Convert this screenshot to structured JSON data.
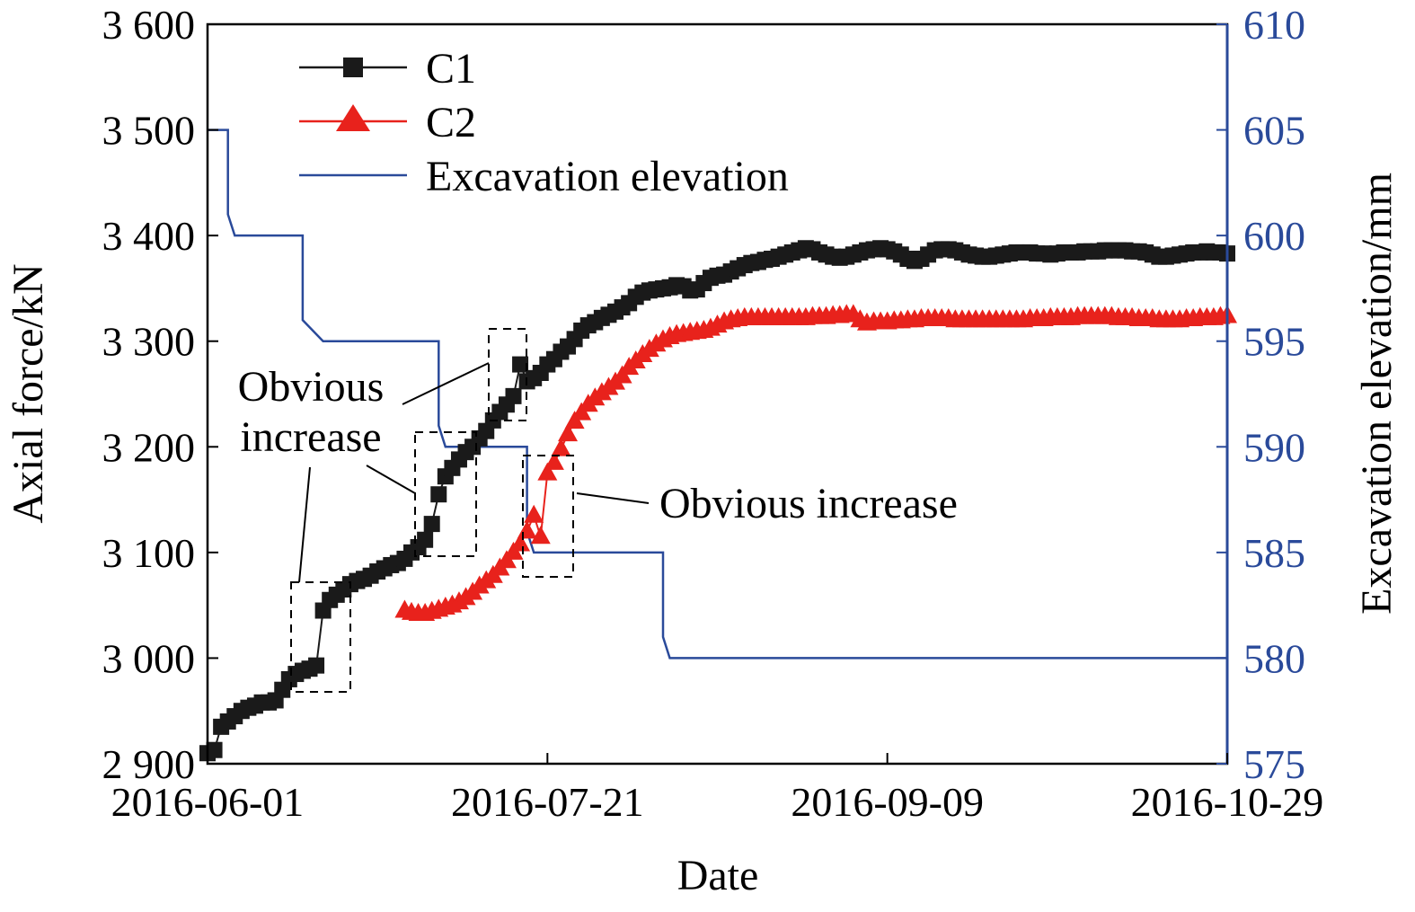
{
  "chart_data": {
    "type": "line",
    "xlabel": "Date",
    "ylabel_left": "Axial force/kN",
    "ylabel_right": "Excavation elevation/mm",
    "x_ticks": [
      "2016-06-01",
      "2016-07-21",
      "2016-09-09",
      "2016-10-29"
    ],
    "x_range": [
      "2016-06-01",
      "2016-10-29"
    ],
    "y_left_ticks": [
      "2 900",
      "3 000",
      "3 100",
      "3 200",
      "3 300",
      "3 400",
      "3 500",
      "3 600"
    ],
    "y_left_range": [
      2900,
      3600
    ],
    "y_right_ticks": [
      "575",
      "580",
      "585",
      "590",
      "595",
      "600",
      "605",
      "610"
    ],
    "y_right_range": [
      575,
      610
    ],
    "grid": false,
    "legend_position": "top-left",
    "colors": {
      "C1": "#1a1a1a",
      "C2": "#e8221c",
      "Excavation elevation": "#2a4a9a",
      "annotation": "#000000"
    },
    "series": [
      {
        "name": "C1",
        "axis": "left",
        "marker": "square",
        "x": [
          "2016-06-01",
          "2016-06-02",
          "2016-06-03",
          "2016-06-04",
          "2016-06-05",
          "2016-06-06",
          "2016-06-07",
          "2016-06-08",
          "2016-06-09",
          "2016-06-10",
          "2016-06-11",
          "2016-06-12",
          "2016-06-13",
          "2016-06-14",
          "2016-06-15",
          "2016-06-16",
          "2016-06-17",
          "2016-06-18",
          "2016-06-19",
          "2016-06-20",
          "2016-06-21",
          "2016-06-22",
          "2016-06-23",
          "2016-06-24",
          "2016-06-25",
          "2016-06-26",
          "2016-06-27",
          "2016-06-28",
          "2016-06-29",
          "2016-06-30",
          "2016-07-01",
          "2016-07-02",
          "2016-07-03",
          "2016-07-04",
          "2016-07-05",
          "2016-07-06",
          "2016-07-07",
          "2016-07-08",
          "2016-07-09",
          "2016-07-10",
          "2016-07-11",
          "2016-07-12",
          "2016-07-13",
          "2016-07-14",
          "2016-07-15",
          "2016-07-16",
          "2016-07-17",
          "2016-07-18",
          "2016-07-19",
          "2016-07-20",
          "2016-07-21",
          "2016-07-22",
          "2016-07-23",
          "2016-07-24",
          "2016-07-25",
          "2016-07-26",
          "2016-07-27",
          "2016-07-28",
          "2016-07-29",
          "2016-07-30",
          "2016-07-31",
          "2016-08-01",
          "2016-08-02",
          "2016-08-03",
          "2016-08-04",
          "2016-08-05",
          "2016-08-06",
          "2016-08-07",
          "2016-08-08",
          "2016-08-09",
          "2016-08-10",
          "2016-08-11",
          "2016-08-12",
          "2016-08-13",
          "2016-08-14",
          "2016-08-15",
          "2016-08-16",
          "2016-08-17",
          "2016-08-18",
          "2016-08-19",
          "2016-08-20",
          "2016-08-21",
          "2016-08-22",
          "2016-08-23",
          "2016-08-24",
          "2016-08-25",
          "2016-08-26",
          "2016-08-27",
          "2016-08-28",
          "2016-08-29",
          "2016-08-30",
          "2016-08-31",
          "2016-09-01",
          "2016-09-02",
          "2016-09-03",
          "2016-09-04",
          "2016-09-05",
          "2016-09-06",
          "2016-09-07",
          "2016-09-08",
          "2016-09-09",
          "2016-09-10",
          "2016-09-11",
          "2016-09-12",
          "2016-09-13",
          "2016-09-14",
          "2016-09-15",
          "2016-09-16",
          "2016-09-17",
          "2016-09-18",
          "2016-09-19",
          "2016-09-20",
          "2016-09-21",
          "2016-09-22",
          "2016-09-23",
          "2016-09-24",
          "2016-09-25",
          "2016-09-26",
          "2016-09-27",
          "2016-09-28",
          "2016-09-29",
          "2016-09-30",
          "2016-10-01",
          "2016-10-02",
          "2016-10-03",
          "2016-10-04",
          "2016-10-05",
          "2016-10-06",
          "2016-10-07",
          "2016-10-08",
          "2016-10-09",
          "2016-10-10",
          "2016-10-11",
          "2016-10-12",
          "2016-10-13",
          "2016-10-14",
          "2016-10-15",
          "2016-10-16",
          "2016-10-17",
          "2016-10-18",
          "2016-10-19",
          "2016-10-20",
          "2016-10-21",
          "2016-10-22",
          "2016-10-23",
          "2016-10-24",
          "2016-10-25",
          "2016-10-26",
          "2016-10-27",
          "2016-10-28",
          "2016-10-29"
        ],
        "values": [
          2910,
          2913,
          2935,
          2940,
          2945,
          2950,
          2953,
          2955,
          2958,
          2958,
          2960,
          2970,
          2980,
          2985,
          2988,
          2990,
          2993,
          3045,
          3055,
          3060,
          3065,
          3070,
          3073,
          3075,
          3078,
          3082,
          3085,
          3088,
          3090,
          3094,
          3100,
          3105,
          3112,
          3127,
          3155,
          3172,
          3180,
          3188,
          3195,
          3200,
          3208,
          3215,
          3225,
          3233,
          3240,
          3248,
          3278,
          3262,
          3265,
          3270,
          3278,
          3283,
          3290,
          3295,
          3302,
          3310,
          3315,
          3318,
          3322,
          3325,
          3328,
          3332,
          3336,
          3342,
          3346,
          3348,
          3349,
          3350,
          3351,
          3353,
          3352,
          3348,
          3349,
          3355,
          3360,
          3362,
          3363,
          3366,
          3369,
          3372,
          3374,
          3375,
          3377,
          3378,
          3380,
          3382,
          3384,
          3386,
          3388,
          3387,
          3384,
          3382,
          3380,
          3379,
          3380,
          3382,
          3384,
          3386,
          3387,
          3388,
          3387,
          3385,
          3382,
          3378,
          3376,
          3378,
          3382,
          3386,
          3387,
          3387,
          3386,
          3384,
          3382,
          3381,
          3380,
          3380,
          3381,
          3382,
          3383,
          3384,
          3384,
          3384,
          3383,
          3383,
          3382,
          3383,
          3384,
          3384,
          3384,
          3385,
          3385,
          3385,
          3386,
          3386,
          3386,
          3386,
          3385,
          3385,
          3384,
          3382,
          3380,
          3380,
          3381,
          3382,
          3383,
          3384,
          3384,
          3385,
          3384,
          3384,
          3383
        ]
      },
      {
        "name": "C2",
        "axis": "left",
        "marker": "triangle",
        "x": [
          "2016-06-30",
          "2016-07-01",
          "2016-07-02",
          "2016-07-03",
          "2016-07-04",
          "2016-07-05",
          "2016-07-06",
          "2016-07-07",
          "2016-07-08",
          "2016-07-09",
          "2016-07-10",
          "2016-07-11",
          "2016-07-12",
          "2016-07-13",
          "2016-07-14",
          "2016-07-15",
          "2016-07-16",
          "2016-07-17",
          "2016-07-18",
          "2016-07-19",
          "2016-07-20",
          "2016-07-21",
          "2016-07-22",
          "2016-07-23",
          "2016-07-24",
          "2016-07-25",
          "2016-07-26",
          "2016-07-27",
          "2016-07-28",
          "2016-07-29",
          "2016-07-30",
          "2016-07-31",
          "2016-08-01",
          "2016-08-02",
          "2016-08-03",
          "2016-08-04",
          "2016-08-05",
          "2016-08-06",
          "2016-08-07",
          "2016-08-08",
          "2016-08-09",
          "2016-08-10",
          "2016-08-11",
          "2016-08-12",
          "2016-08-13",
          "2016-08-14",
          "2016-08-15",
          "2016-08-16",
          "2016-08-17",
          "2016-08-18",
          "2016-08-19",
          "2016-08-20",
          "2016-08-21",
          "2016-08-22",
          "2016-08-23",
          "2016-08-24",
          "2016-08-25",
          "2016-08-26",
          "2016-08-27",
          "2016-08-28",
          "2016-08-29",
          "2016-08-30",
          "2016-08-31",
          "2016-09-01",
          "2016-09-02",
          "2016-09-03",
          "2016-09-04",
          "2016-09-05",
          "2016-09-06",
          "2016-09-07",
          "2016-09-08",
          "2016-09-09",
          "2016-09-10",
          "2016-09-11",
          "2016-09-12",
          "2016-09-13",
          "2016-09-14",
          "2016-09-15",
          "2016-09-16",
          "2016-09-17",
          "2016-09-18",
          "2016-09-19",
          "2016-09-20",
          "2016-09-21",
          "2016-09-22",
          "2016-09-23",
          "2016-09-24",
          "2016-09-25",
          "2016-09-26",
          "2016-09-27",
          "2016-09-28",
          "2016-09-29",
          "2016-09-30",
          "2016-10-01",
          "2016-10-02",
          "2016-10-03",
          "2016-10-04",
          "2016-10-05",
          "2016-10-06",
          "2016-10-07",
          "2016-10-08",
          "2016-10-09",
          "2016-10-10",
          "2016-10-11",
          "2016-10-12",
          "2016-10-13",
          "2016-10-14",
          "2016-10-15",
          "2016-10-16",
          "2016-10-17",
          "2016-10-18",
          "2016-10-19",
          "2016-10-20",
          "2016-10-21",
          "2016-10-22",
          "2016-10-23",
          "2016-10-24",
          "2016-10-25",
          "2016-10-26",
          "2016-10-27",
          "2016-10-28",
          "2016-10-29"
        ],
        "values": [
          3045,
          3043,
          3042,
          3042,
          3044,
          3046,
          3048,
          3050,
          3053,
          3057,
          3062,
          3068,
          3073,
          3078,
          3085,
          3092,
          3100,
          3108,
          3120,
          3135,
          3115,
          3175,
          3185,
          3198,
          3212,
          3224,
          3232,
          3240,
          3246,
          3251,
          3256,
          3261,
          3267,
          3275,
          3281,
          3287,
          3292,
          3297,
          3301,
          3304,
          3306,
          3307,
          3308,
          3309,
          3310,
          3312,
          3315,
          3318,
          3320,
          3321,
          3322,
          3322,
          3322,
          3322,
          3322,
          3322,
          3322,
          3322,
          3322,
          3322,
          3323,
          3323,
          3323,
          3324,
          3324,
          3325,
          3325,
          3320,
          3317,
          3318,
          3318,
          3318,
          3319,
          3319,
          3320,
          3320,
          3321,
          3321,
          3321,
          3321,
          3321,
          3320,
          3320,
          3320,
          3320,
          3320,
          3320,
          3320,
          3320,
          3320,
          3320,
          3320,
          3321,
          3321,
          3321,
          3322,
          3322,
          3322,
          3322,
          3323,
          3323,
          3323,
          3323,
          3323,
          3323,
          3322,
          3322,
          3322,
          3321,
          3321,
          3321,
          3320,
          3320,
          3320,
          3320,
          3321,
          3321,
          3322,
          3322,
          3322,
          3323,
          3324
        ]
      },
      {
        "name": "Excavation elevation",
        "axis": "right",
        "marker": "none",
        "x": [
          "2016-06-01",
          "2016-06-04",
          "2016-06-04",
          "2016-06-05",
          "2016-06-05",
          "2016-06-15",
          "2016-06-15",
          "2016-06-18",
          "2016-06-18",
          "2016-07-05",
          "2016-07-05",
          "2016-07-06",
          "2016-07-06",
          "2016-07-18",
          "2016-07-18",
          "2016-07-19",
          "2016-07-19",
          "2016-08-07",
          "2016-08-07",
          "2016-08-08",
          "2016-08-08",
          "2016-10-29"
        ],
        "values": [
          605,
          605,
          601,
          600,
          600,
          600,
          596,
          595,
          595,
          595,
          591,
          590,
          590,
          590,
          586,
          585,
          585,
          585,
          581,
          580,
          580,
          580
        ]
      }
    ],
    "annotations": [
      {
        "text_lines": [
          "Obvious",
          "increase"
        ]
      },
      {
        "text": "Obvious increase"
      }
    ]
  }
}
